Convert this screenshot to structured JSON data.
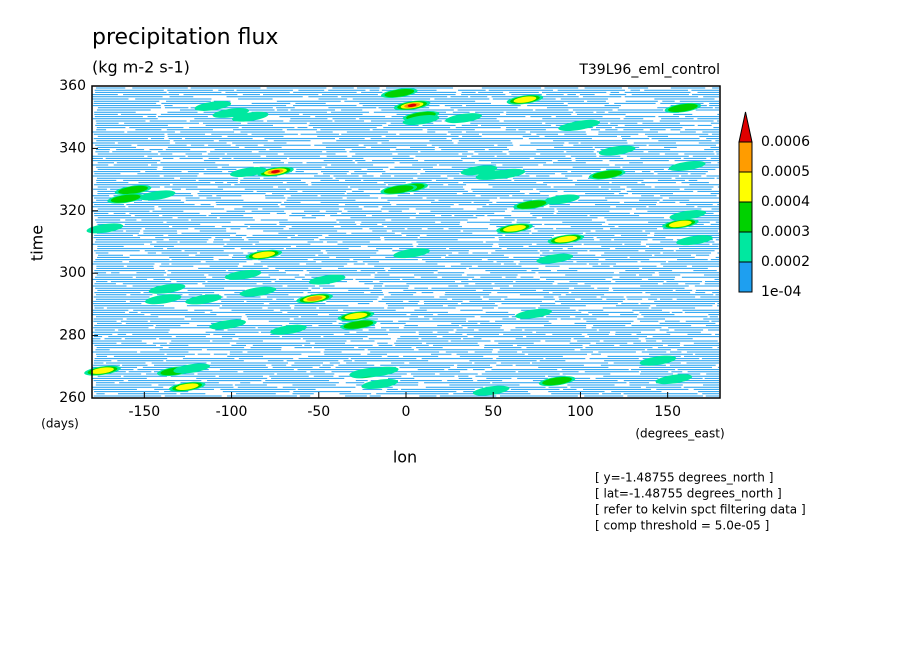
{
  "chart_data": {
    "type": "contour",
    "title": "precipitation flux",
    "subtitle": "(kg m-2 s-1)",
    "dataset": "T39L96_eml_control",
    "x_label": "lon",
    "x_units": "(degrees_east)",
    "y_label": "time",
    "y_units": "(days)",
    "xlim": [
      -180,
      180
    ],
    "xticks": [
      -150,
      -100,
      -50,
      0,
      50,
      100,
      150
    ],
    "ylim": [
      260,
      360
    ],
    "yticks": [
      260,
      280,
      300,
      320,
      340,
      360
    ],
    "levels": [
      {
        "value": 0.0001,
        "label": "1e-04"
      },
      0.0002,
      0.0003,
      0.0004,
      0.0005,
      0.0006
    ],
    "colors": [
      "#1e9ff0",
      "#00e8a0",
      "#00d200",
      "#ffff00",
      "#ff9c00",
      "#e00000"
    ],
    "notes": [
      "[ y=-1.48755 degrees_north ]",
      "[ lat=-1.48755 degrees_north ]",
      "[ refer to kelvin spct filtering data ]",
      "[ comp threshold = 5.0e-05 ]"
    ]
  }
}
